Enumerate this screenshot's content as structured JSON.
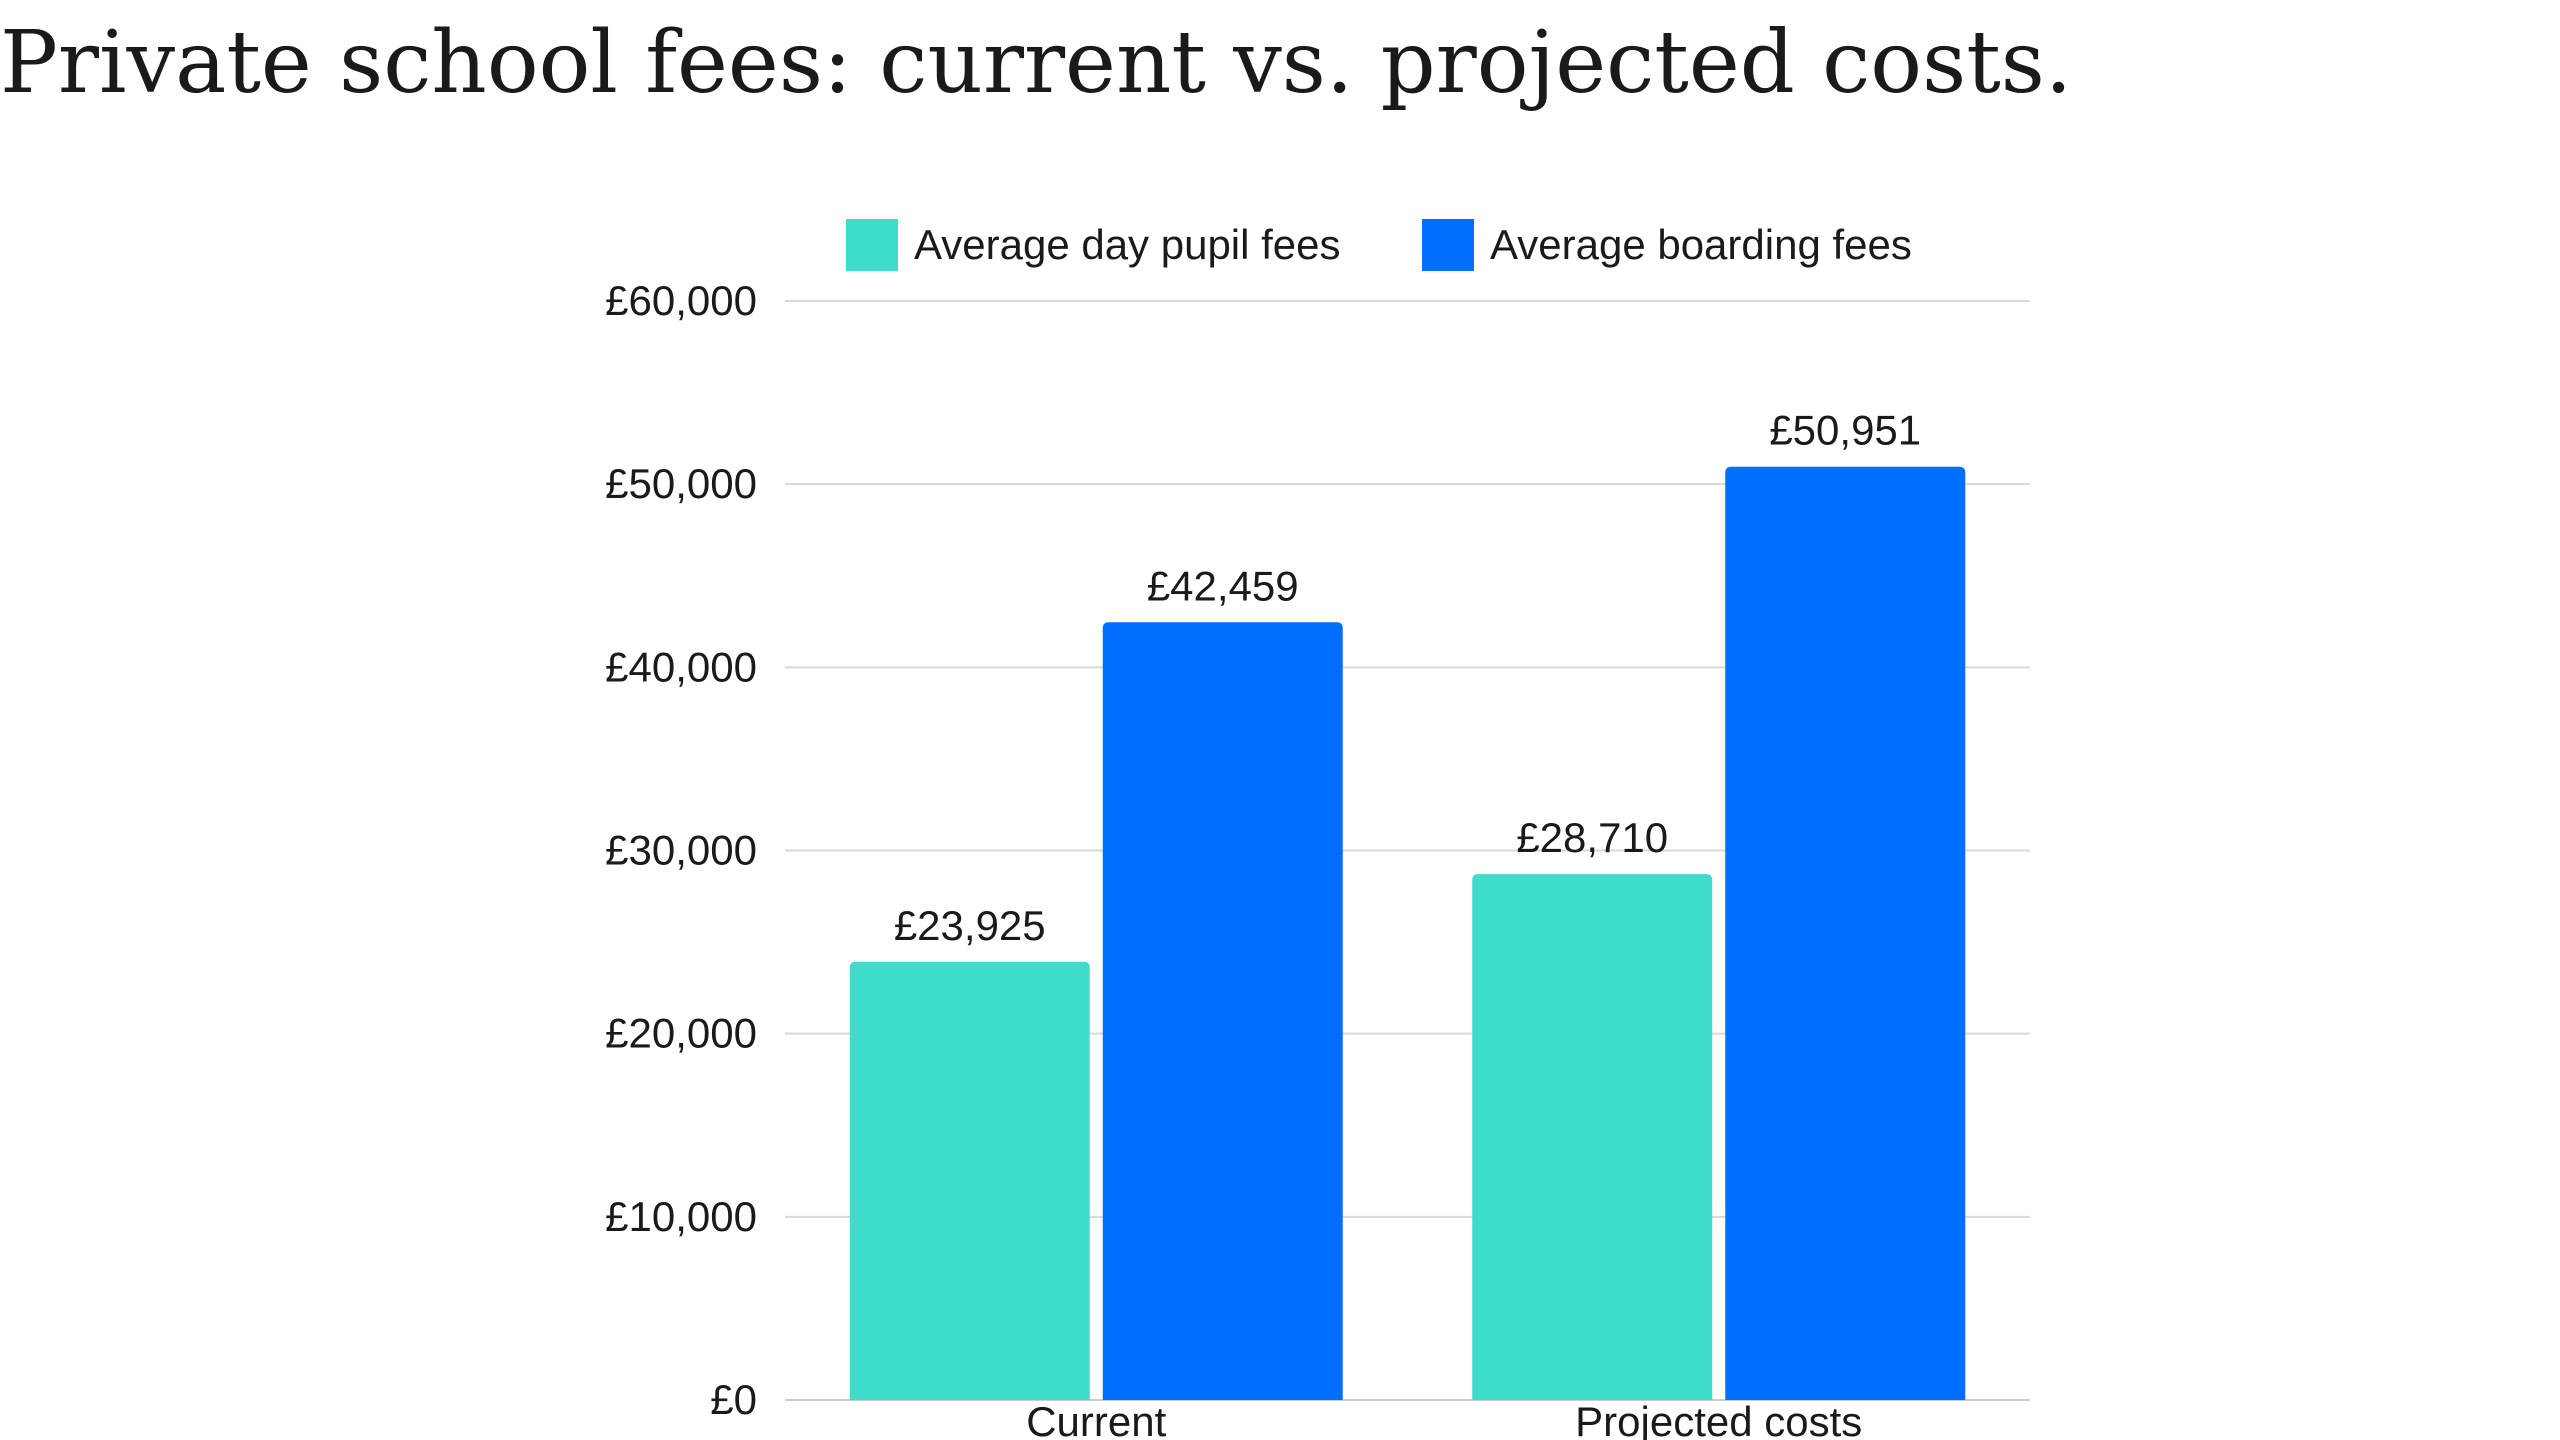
{
  "title": "Private school fees: current vs. projected costs.",
  "chart_data": {
    "type": "bar",
    "categories": [
      "Current",
      "Projected costs"
    ],
    "series": [
      {
        "name": "Average day pupil fees",
        "values": [
          23925,
          28710
        ],
        "labels": [
          "£23,925",
          "£28,710"
        ],
        "color": "#3EDDCB"
      },
      {
        "name": "Average boarding fees",
        "values": [
          42459,
          50951
        ],
        "labels": [
          "£42,459",
          "£50,951"
        ],
        "color": "#006EFF"
      }
    ],
    "ylim": [
      0,
      60000
    ],
    "yticks": [
      {
        "value": 0,
        "label": "£0"
      },
      {
        "value": 10000,
        "label": "£10,000"
      },
      {
        "value": 20000,
        "label": "£20,000"
      },
      {
        "value": 30000,
        "label": "£30,000"
      },
      {
        "value": 40000,
        "label": "£40,000"
      },
      {
        "value": 50000,
        "label": "£50,000"
      },
      {
        "value": 60000,
        "label": "£60,000"
      }
    ],
    "grid": true,
    "legend": "top",
    "xlabel": "",
    "ylabel": ""
  }
}
